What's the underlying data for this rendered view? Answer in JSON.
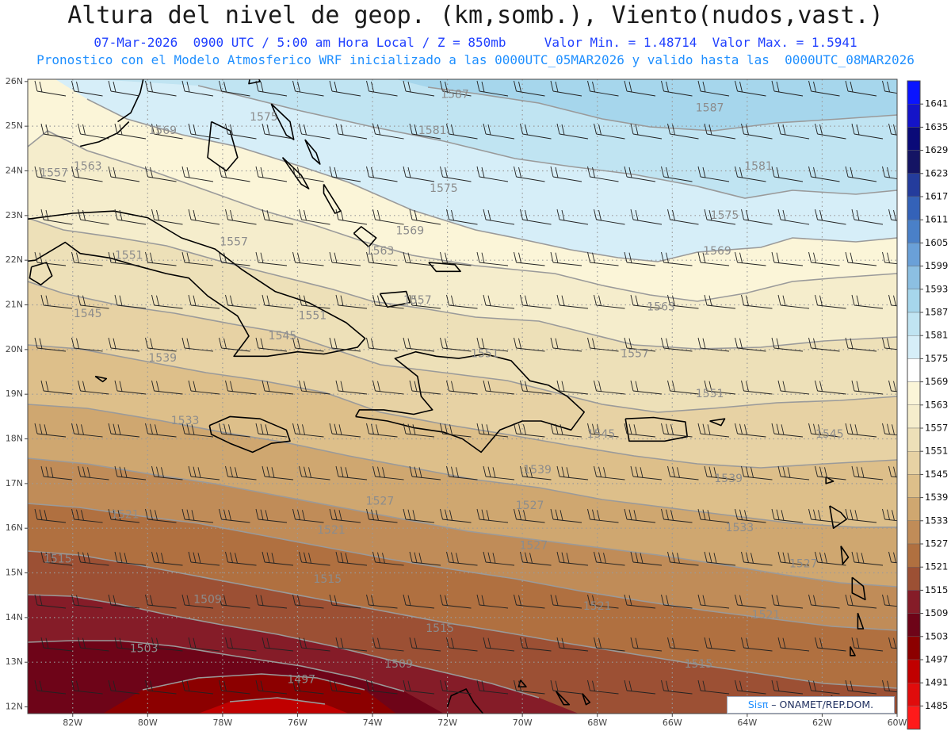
{
  "header": {
    "title": "Altura del nivel de geop. (km,somb.), Viento(nudos,vast.)",
    "line1_date": "07-Mar-2026",
    "line1_time": "0900 UTC / 5:00 am Hora Local / Z = 850mb",
    "line1_min": "Valor Min. = 1.48714",
    "line1_max": "Valor Max. = 1.5941",
    "line2": "Pronostico con el Modelo Atmosferico WRF inicializado a las 0000UTC_05MAR2026 y valido hasta las  0000UTC_08MAR2026"
  },
  "map": {
    "lat_labels": [
      "26N",
      "25N",
      "24N",
      "23N",
      "22N",
      "21N",
      "20N",
      "19N",
      "18N",
      "17N",
      "16N",
      "15N",
      "14N",
      "13N",
      "12N"
    ],
    "lon_labels": [
      "82W",
      "80W",
      "78W",
      "76W",
      "74W",
      "72W",
      "70W",
      "68W",
      "66W",
      "64W",
      "62W",
      "60W"
    ],
    "lon_range": [
      -83.2,
      -60
    ],
    "lat_range": [
      11.85,
      26.05
    ],
    "contour_labels": [
      {
        "text": "1587",
        "lon": -71.8,
        "lat": 25.7
      },
      {
        "text": "1587",
        "lon": -65.0,
        "lat": 25.4
      },
      {
        "text": "1575",
        "lon": -76.9,
        "lat": 25.2
      },
      {
        "text": "1581",
        "lon": -72.4,
        "lat": 24.9
      },
      {
        "text": "1569",
        "lon": -79.6,
        "lat": 24.9
      },
      {
        "text": "1563",
        "lon": -81.6,
        "lat": 24.1
      },
      {
        "text": "1557",
        "lon": -82.5,
        "lat": 23.95
      },
      {
        "text": "1581",
        "lon": -63.7,
        "lat": 24.1
      },
      {
        "text": "1575",
        "lon": -72.1,
        "lat": 23.6
      },
      {
        "text": "1575",
        "lon": -64.6,
        "lat": 23.0
      },
      {
        "text": "1569",
        "lon": -73.0,
        "lat": 22.65
      },
      {
        "text": "1563",
        "lon": -73.8,
        "lat": 22.2
      },
      {
        "text": "1557",
        "lon": -77.7,
        "lat": 22.4
      },
      {
        "text": "1551",
        "lon": -80.5,
        "lat": 22.1
      },
      {
        "text": "1569",
        "lon": -64.8,
        "lat": 22.2
      },
      {
        "text": "1557",
        "lon": -72.8,
        "lat": 21.1
      },
      {
        "text": "1563",
        "lon": -66.3,
        "lat": 20.95
      },
      {
        "text": "1545",
        "lon": -81.6,
        "lat": 20.8
      },
      {
        "text": "1551",
        "lon": -75.6,
        "lat": 20.75
      },
      {
        "text": "1545",
        "lon": -76.4,
        "lat": 20.3
      },
      {
        "text": "1539",
        "lon": -79.6,
        "lat": 19.8
      },
      {
        "text": "1557",
        "lon": -67.0,
        "lat": 19.9
      },
      {
        "text": "1551",
        "lon": -71.0,
        "lat": 19.9
      },
      {
        "text": "1551",
        "lon": -65.0,
        "lat": 19.0
      },
      {
        "text": "1533",
        "lon": -79.0,
        "lat": 18.4
      },
      {
        "text": "1545",
        "lon": -67.9,
        "lat": 18.1
      },
      {
        "text": "1545",
        "lon": -61.8,
        "lat": 18.1
      },
      {
        "text": "1539",
        "lon": -69.6,
        "lat": 17.3
      },
      {
        "text": "1539",
        "lon": -64.5,
        "lat": 17.1
      },
      {
        "text": "1527",
        "lon": -73.8,
        "lat": 16.6
      },
      {
        "text": "1527",
        "lon": -69.8,
        "lat": 16.5
      },
      {
        "text": "1521",
        "lon": -80.6,
        "lat": 16.3
      },
      {
        "text": "1521",
        "lon": -75.1,
        "lat": 15.95
      },
      {
        "text": "1533",
        "lon": -64.2,
        "lat": 16.0
      },
      {
        "text": "1515",
        "lon": -82.4,
        "lat": 15.3
      },
      {
        "text": "1527",
        "lon": -69.7,
        "lat": 15.6
      },
      {
        "text": "1527",
        "lon": -62.5,
        "lat": 15.2
      },
      {
        "text": "1515",
        "lon": -75.2,
        "lat": 14.85
      },
      {
        "text": "1509",
        "lon": -78.4,
        "lat": 14.4
      },
      {
        "text": "1521",
        "lon": -68.0,
        "lat": 14.25
      },
      {
        "text": "1521",
        "lon": -63.5,
        "lat": 14.05
      },
      {
        "text": "1515",
        "lon": -72.2,
        "lat": 13.75
      },
      {
        "text": "1503",
        "lon": -80.1,
        "lat": 13.3
      },
      {
        "text": "1509",
        "lon": -73.3,
        "lat": 12.95
      },
      {
        "text": "1515",
        "lon": -65.3,
        "lat": 12.95
      },
      {
        "text": "1497",
        "lon": -75.9,
        "lat": 12.6
      }
    ]
  },
  "colorbar": {
    "labels": [
      "1641",
      "1635",
      "1629",
      "1623",
      "1617",
      "1611",
      "1605",
      "1599",
      "1593",
      "1587",
      "1581",
      "1575",
      "1569",
      "1563",
      "1557",
      "1551",
      "1545",
      "1539",
      "1533",
      "1527",
      "1521",
      "1515",
      "1509",
      "1503",
      "1497",
      "1491",
      "1485"
    ],
    "colors": {
      "1641": "#0a14ff",
      "1635": "#1414c8",
      "1629": "#0a0a78",
      "1623": "#141464",
      "1617": "#243c9c",
      "1611": "#3462b8",
      "1605": "#4a80c8",
      "1599": "#6aa0d8",
      "1593": "#8cbfe2",
      "1587": "#a6d6ec",
      "1581": "#c0e4f2",
      "1575": "#d6eef8",
      "1569": "#ffffff",
      "1563": "#fbf5d8",
      "1557": "#f5edcc",
      "1551": "#ede0b8",
      "1545": "#e7d2a4",
      "1539": "#ddbf8a",
      "1533": "#cfa770",
      "1527": "#c08c58",
      "1521": "#b07040",
      "1515": "#9c5034",
      "1509": "#851c28",
      "1503": "#6e0418",
      "1497": "#8c0000",
      "1491": "#c00000",
      "1485": "#e00c0c",
      "below": "#ff1a1a"
    }
  },
  "credit": {
    "brand": "Sisπ",
    "text": "– ONAMET/REP.DOM."
  }
}
